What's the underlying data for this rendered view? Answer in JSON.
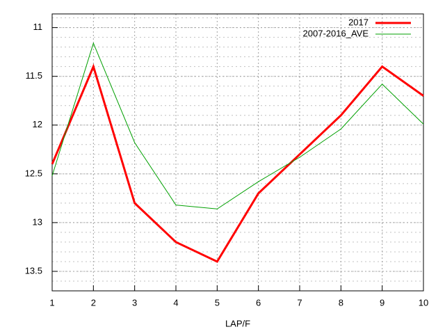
{
  "chart_data": {
    "type": "line",
    "x_label": "LAP/F",
    "x": [
      1,
      2,
      3,
      4,
      5,
      6,
      7,
      8,
      9,
      10
    ],
    "series": [
      {
        "name": "2017",
        "color": "#ff0000",
        "line_width": 3,
        "values": [
          12.4,
          11.4,
          12.8,
          13.2,
          13.4,
          12.7,
          12.3,
          11.9,
          11.4,
          11.7
        ]
      },
      {
        "name": "2007-2016_AVE",
        "color": "#00a000",
        "line_width": 1,
        "values": [
          12.52,
          11.16,
          12.18,
          12.82,
          12.86,
          12.58,
          12.33,
          12.04,
          11.58,
          11.99
        ]
      }
    ],
    "xlim": [
      1,
      10
    ],
    "xticks": [
      1,
      2,
      3,
      4,
      5,
      6,
      7,
      8,
      9,
      10
    ],
    "ylim": [
      13.7,
      10.86
    ],
    "yticks": [
      11,
      11.5,
      12,
      12.5,
      13,
      13.5
    ],
    "grid": true,
    "legend": "top-right"
  }
}
